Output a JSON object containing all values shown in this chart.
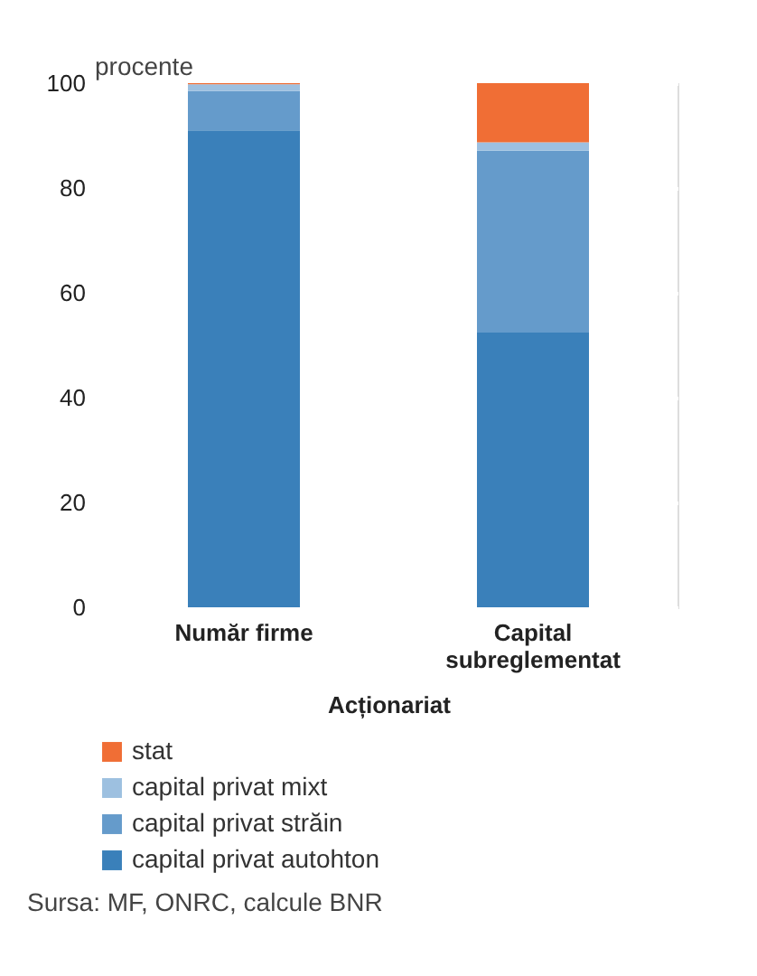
{
  "chart_data": {
    "type": "bar",
    "stacked": true,
    "ylabel": "procente",
    "xlabel": "Acționariat",
    "categories": [
      "Număr firme",
      "Capital subreglementat"
    ],
    "series": [
      {
        "name": "capital privat autohton",
        "color": "#3a80ba",
        "values": [
          91.0,
          52.4
        ]
      },
      {
        "name": "capital privat străin",
        "color": "#659bcb",
        "values": [
          7.5,
          34.7
        ]
      },
      {
        "name": "capital privat mixt",
        "color": "#9dc0e0",
        "values": [
          1.3,
          1.6
        ]
      },
      {
        "name": "stat",
        "color": "#f06e35",
        "values": [
          0.2,
          11.3
        ]
      }
    ],
    "ylim": [
      0,
      100
    ],
    "yticks": [
      0,
      20,
      40,
      60,
      80,
      100
    ],
    "grid": "y",
    "legend": "bottom",
    "annotations": [
      "Sursa: MF, ONRC, calcule BNR"
    ]
  }
}
